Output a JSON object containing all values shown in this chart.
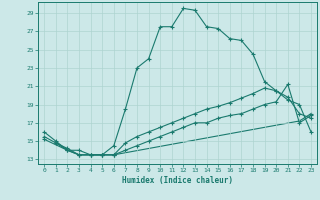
{
  "xlabel": "Humidex (Indice chaleur)",
  "bg_color": "#cce8e8",
  "line_color": "#1a7a6e",
  "grid_color": "#aed4d0",
  "xlim": [
    -0.5,
    23.5
  ],
  "ylim": [
    12.5,
    30.2
  ],
  "xticks": [
    0,
    1,
    2,
    3,
    4,
    5,
    6,
    7,
    8,
    9,
    10,
    11,
    12,
    13,
    14,
    15,
    16,
    17,
    18,
    19,
    20,
    21,
    22,
    23
  ],
  "yticks": [
    13,
    15,
    17,
    19,
    21,
    23,
    25,
    27,
    29
  ],
  "line1_x": [
    0,
    1,
    2,
    3,
    4,
    5,
    6,
    7,
    8,
    9,
    10,
    11,
    12,
    13,
    14,
    15,
    16,
    17,
    18,
    19,
    20,
    21,
    22,
    23
  ],
  "line1_y": [
    16,
    15,
    14,
    14,
    13.5,
    13.5,
    14.5,
    18.5,
    23,
    24,
    27.5,
    27.5,
    29.5,
    29.3,
    27.5,
    27.3,
    26.2,
    26,
    24.5,
    21.5,
    20.5,
    19.5,
    19,
    16
  ],
  "line2_x": [
    0,
    1,
    2,
    3,
    4,
    5,
    6,
    7,
    8,
    9,
    10,
    11,
    12,
    13,
    14,
    15,
    16,
    17,
    18,
    19,
    20,
    21,
    22,
    23
  ],
  "line2_y": [
    15.5,
    14.8,
    14.2,
    13.5,
    13.5,
    13.5,
    13.5,
    14.8,
    15.5,
    16,
    16.5,
    17,
    17.5,
    18,
    18.5,
    18.8,
    19.2,
    19.7,
    20.2,
    20.8,
    20.5,
    19.8,
    18,
    17.5
  ],
  "line3_x": [
    0,
    2,
    3,
    4,
    5,
    6,
    7,
    8,
    9,
    10,
    11,
    12,
    13,
    14,
    15,
    16,
    17,
    18,
    19,
    20,
    21,
    22,
    23
  ],
  "line3_y": [
    15.2,
    14,
    13.5,
    13.5,
    13.5,
    13.5,
    14,
    14.5,
    15,
    15.5,
    16,
    16.5,
    17,
    17,
    17.5,
    17.8,
    18,
    18.5,
    19,
    19.3,
    21.2,
    17,
    17.8
  ],
  "line4_x": [
    1,
    2,
    3,
    4,
    5,
    6,
    22,
    23
  ],
  "line4_y": [
    14.8,
    14,
    13.5,
    13.5,
    13.5,
    13.5,
    17.2,
    18
  ]
}
